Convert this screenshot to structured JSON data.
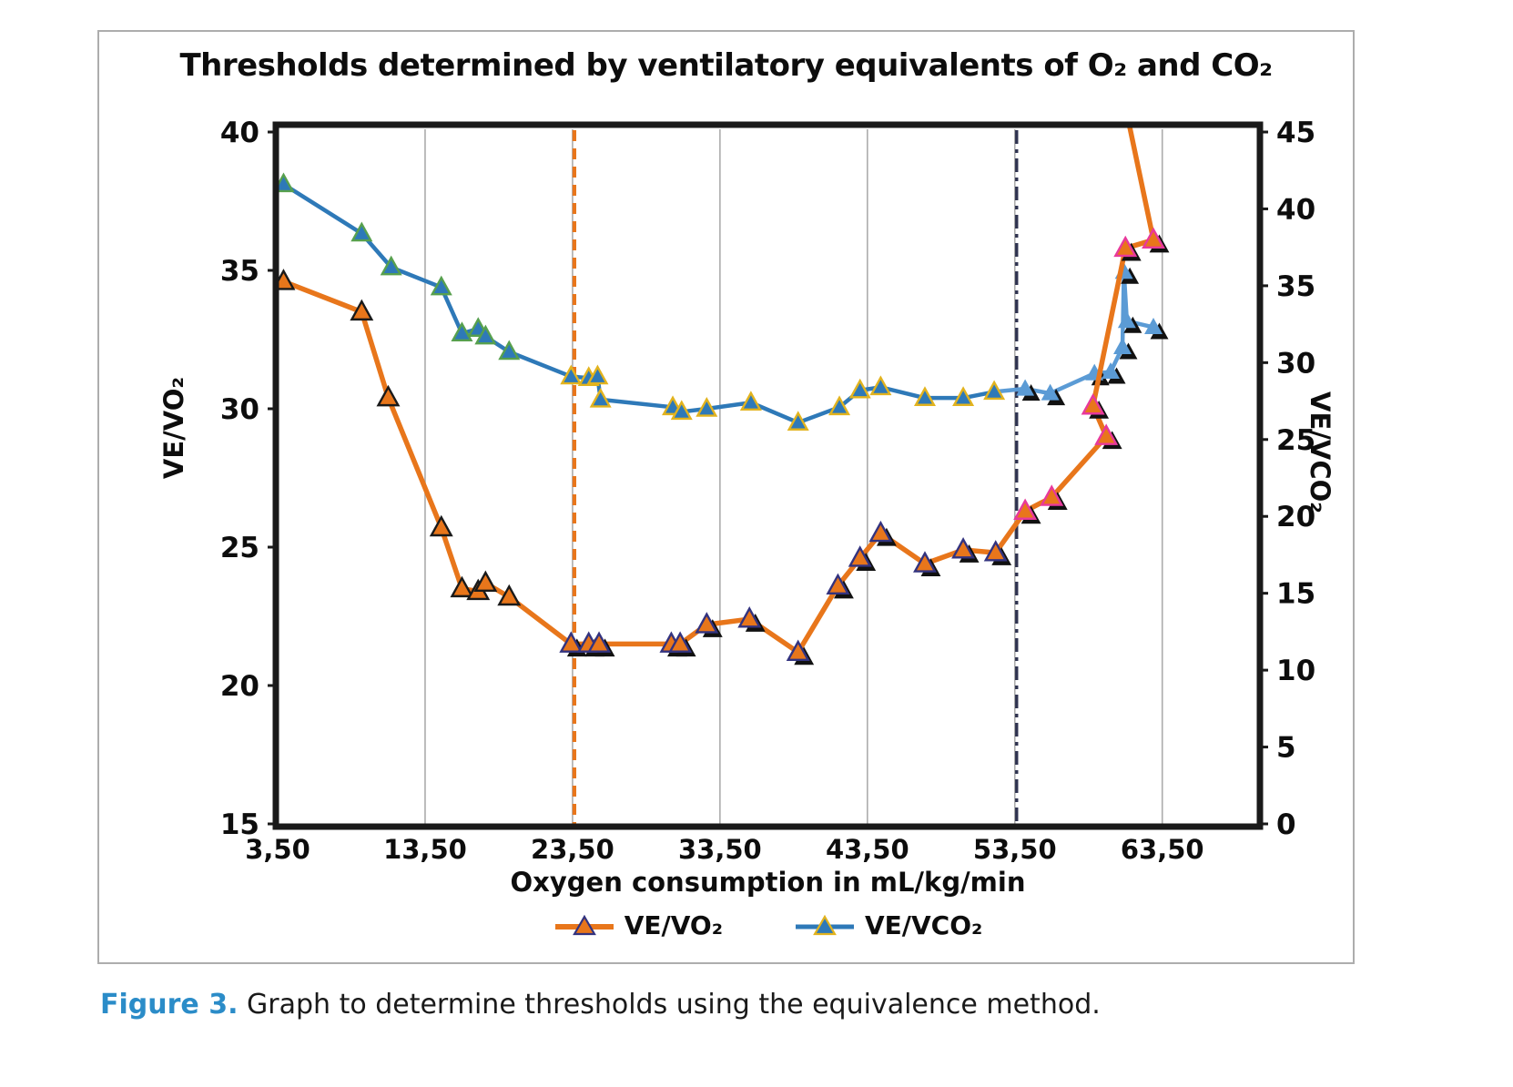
{
  "figure": {
    "title": "Thresholds determined by ventilatory equivalents of O₂ and CO₂",
    "caption_label": "Figure 3.",
    "caption_text": " Graph to determine thresholds using the equivalence method."
  },
  "chart_data": {
    "type": "line",
    "title": "Thresholds determined by ventilatory equivalents of O₂ and CO₂",
    "x_axis": {
      "label": "Oxygen consumption in mL/kg/min",
      "range": [
        3.5,
        70
      ],
      "ticks": [
        {
          "label": "3,50",
          "value": 3.5
        },
        {
          "label": "13,50",
          "value": 13.5
        },
        {
          "label": "23,50",
          "value": 23.5
        },
        {
          "label": "33,50",
          "value": 33.5
        },
        {
          "label": "43,50",
          "value": 43.5
        },
        {
          "label": "53,50",
          "value": 53.5
        },
        {
          "label": "63,50",
          "value": 63.5
        }
      ],
      "grid": true
    },
    "y_left": {
      "label": "VE/VO₂",
      "range": [
        15,
        40
      ],
      "ticks": [
        40,
        35,
        30,
        25,
        20,
        15
      ]
    },
    "y_right": {
      "label": "VE/VCO₂",
      "range": [
        0,
        45
      ],
      "ticks": [
        45,
        40,
        35,
        30,
        25,
        20,
        15,
        10,
        5,
        0
      ]
    },
    "thresholds": [
      {
        "name": "threshold-1",
        "x": 23.5,
        "style": "dashed",
        "color": "#E8761B"
      },
      {
        "name": "threshold-2",
        "x": 53.5,
        "style": "dash-dot",
        "color": "#2F3350"
      }
    ],
    "legend": {
      "position": "bottom",
      "entries": [
        "VE/VO₂",
        "VE/VCO₂"
      ]
    },
    "series": [
      {
        "name": "VE/VCO₂",
        "axis": "right",
        "color": "#2E79B8",
        "tail_color": "#5B9BD5",
        "marker_fill": "#2E79B8",
        "line_width": 4.5,
        "marker_zones": [
          {
            "from": 0,
            "to": 23,
            "stroke": "#57A04E",
            "shadow": false
          },
          {
            "from": 23,
            "to": 53.5,
            "stroke": "#E2B31E",
            "shadow": false
          },
          {
            "from": 53.5,
            "to": 99,
            "stroke": "none",
            "fill": "#5B9BD5",
            "shadow": true
          }
        ],
        "points": [
          [
            3.9,
            41.6
          ],
          [
            9.2,
            38.4
          ],
          [
            11.2,
            36.2
          ],
          [
            14.6,
            34.9
          ],
          [
            16.0,
            31.9
          ],
          [
            17.1,
            32.2
          ],
          [
            17.6,
            31.7
          ],
          [
            19.2,
            30.7
          ],
          [
            23.4,
            29.1
          ],
          [
            24.6,
            29.0
          ],
          [
            25.2,
            29.1
          ],
          [
            25.4,
            27.6
          ],
          [
            30.3,
            27.1
          ],
          [
            30.9,
            26.8
          ],
          [
            32.6,
            27.0
          ],
          [
            35.6,
            27.4
          ],
          [
            38.8,
            26.1
          ],
          [
            41.6,
            27.1
          ],
          [
            43.0,
            28.2
          ],
          [
            44.4,
            28.4
          ],
          [
            47.4,
            27.7
          ],
          [
            50.0,
            27.7
          ],
          [
            52.1,
            28.1
          ],
          [
            54.2,
            28.3
          ],
          [
            55.9,
            28.0
          ],
          [
            58.9,
            29.3
          ],
          [
            60.0,
            29.4
          ],
          [
            60.8,
            31.0
          ],
          [
            60.9,
            35.9
          ],
          [
            61.1,
            32.7
          ],
          [
            62.9,
            32.3
          ]
        ]
      },
      {
        "name": "VE/VO₂",
        "axis": "left",
        "color": "#E8761B",
        "marker_fill": "#E8761B",
        "line_width": 5.5,
        "marker_zones": [
          {
            "from": 0,
            "to": 21,
            "stroke": "#1A1A1A",
            "shadow": false
          },
          {
            "from": 21,
            "to": 53.5,
            "stroke": "#33337F",
            "shadow": true
          },
          {
            "from": 53.5,
            "to": 99,
            "stroke": "#E8399B",
            "shadow": true
          }
        ],
        "points": [
          [
            3.9,
            34.6
          ],
          [
            9.2,
            33.5
          ],
          [
            11.0,
            30.4
          ],
          [
            14.6,
            25.7
          ],
          [
            16.0,
            23.5
          ],
          [
            17.1,
            23.4
          ],
          [
            17.6,
            23.7
          ],
          [
            19.2,
            23.2
          ],
          [
            23.4,
            21.5
          ],
          [
            24.6,
            21.5
          ],
          [
            25.3,
            21.5
          ],
          [
            30.2,
            21.5
          ],
          [
            30.8,
            21.5
          ],
          [
            32.6,
            22.2
          ],
          [
            35.5,
            22.4
          ],
          [
            38.8,
            21.2
          ],
          [
            41.5,
            23.6
          ],
          [
            43.0,
            24.6
          ],
          [
            44.4,
            25.5
          ],
          [
            47.4,
            24.4
          ],
          [
            50.0,
            24.9
          ],
          [
            52.2,
            24.8
          ],
          [
            54.2,
            26.3
          ],
          [
            56.0,
            26.8
          ],
          [
            59.7,
            29.0
          ],
          [
            58.8,
            30.1
          ],
          [
            61.0,
            35.8
          ],
          [
            62.9,
            36.1
          ],
          [
            59.0,
            46.0
          ]
        ]
      }
    ]
  },
  "colors": {
    "border": "#1A1A1A",
    "gridline": "#ACACAC",
    "caption_accent": "#2B8CC8",
    "orange": "#E8761B",
    "blue": "#2E79B8",
    "blue_light": "#5B9BD5"
  }
}
